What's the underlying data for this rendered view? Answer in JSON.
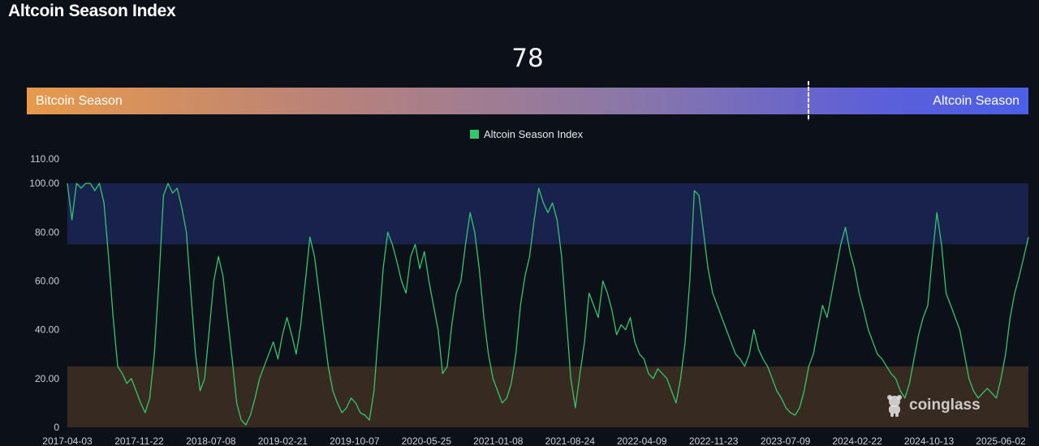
{
  "title": "Altcoin Season Index",
  "index_value": "78",
  "season_bar": {
    "left_label": "Bitcoin Season",
    "right_label": "Altcoin Season"
  },
  "legend": {
    "label": "Altcoin Season Index",
    "color": "#35c46f"
  },
  "watermark": {
    "text": "coinglass"
  },
  "colors": {
    "line": "#35c46f",
    "altcoin_zone": "#1a2450",
    "bitcoin_zone": "#3a2c22",
    "axis_text": "#c9ced8"
  },
  "chart_data": {
    "type": "line",
    "ylim": [
      0,
      110
    ],
    "yticks": [
      "0",
      "20.00",
      "40.00",
      "60.00",
      "80.00",
      "100.00",
      "110.00"
    ],
    "ytick_values": [
      0,
      20,
      40,
      60,
      80,
      100,
      110
    ],
    "xticks": [
      "2017-04-03",
      "2017-11-22",
      "2018-07-08",
      "2019-02-21",
      "2019-10-07",
      "2020-05-25",
      "2021-01-08",
      "2021-08-24",
      "2022-04-09",
      "2022-11-23",
      "2023-07-09",
      "2024-02-22",
      "2024-10-13",
      "2025-06-02"
    ],
    "bands": [
      {
        "name": "Altcoin Season",
        "from": 75,
        "to": 100
      },
      {
        "name": "Bitcoin Season",
        "from": 0,
        "to": 25
      }
    ],
    "series": [
      {
        "name": "Altcoin Season Index",
        "values": [
          100,
          85,
          100,
          98,
          100,
          100,
          97,
          100,
          92,
          70,
          45,
          25,
          22,
          18,
          20,
          15,
          10,
          6,
          12,
          30,
          60,
          95,
          100,
          96,
          98,
          90,
          80,
          55,
          30,
          15,
          20,
          40,
          60,
          70,
          62,
          45,
          28,
          10,
          3,
          1,
          5,
          12,
          20,
          25,
          30,
          35,
          28,
          38,
          45,
          38,
          30,
          42,
          60,
          78,
          70,
          55,
          40,
          25,
          15,
          10,
          6,
          8,
          12,
          10,
          6,
          5,
          3,
          15,
          40,
          65,
          80,
          75,
          68,
          60,
          55,
          70,
          75,
          65,
          72,
          60,
          50,
          40,
          22,
          25,
          42,
          55,
          60,
          75,
          88,
          80,
          65,
          45,
          30,
          20,
          15,
          10,
          12,
          18,
          30,
          50,
          62,
          70,
          85,
          98,
          92,
          88,
          92,
          85,
          70,
          45,
          20,
          8,
          22,
          35,
          55,
          50,
          45,
          60,
          55,
          48,
          38,
          42,
          40,
          45,
          35,
          30,
          28,
          22,
          20,
          24,
          22,
          20,
          15,
          10,
          20,
          35,
          60,
          97,
          95,
          80,
          65,
          55,
          50,
          45,
          40,
          35,
          30,
          28,
          25,
          30,
          40,
          32,
          28,
          25,
          20,
          15,
          12,
          8,
          6,
          5,
          8,
          15,
          25,
          30,
          40,
          50,
          45,
          55,
          65,
          75,
          82,
          72,
          65,
          55,
          48,
          40,
          35,
          30,
          28,
          25,
          22,
          20,
          15,
          12,
          18,
          28,
          38,
          45,
          50,
          70,
          88,
          75,
          55,
          50,
          45,
          40,
          30,
          20,
          15,
          12,
          14,
          16,
          14,
          12,
          20,
          30,
          45,
          55,
          62,
          70,
          78
        ]
      }
    ]
  }
}
